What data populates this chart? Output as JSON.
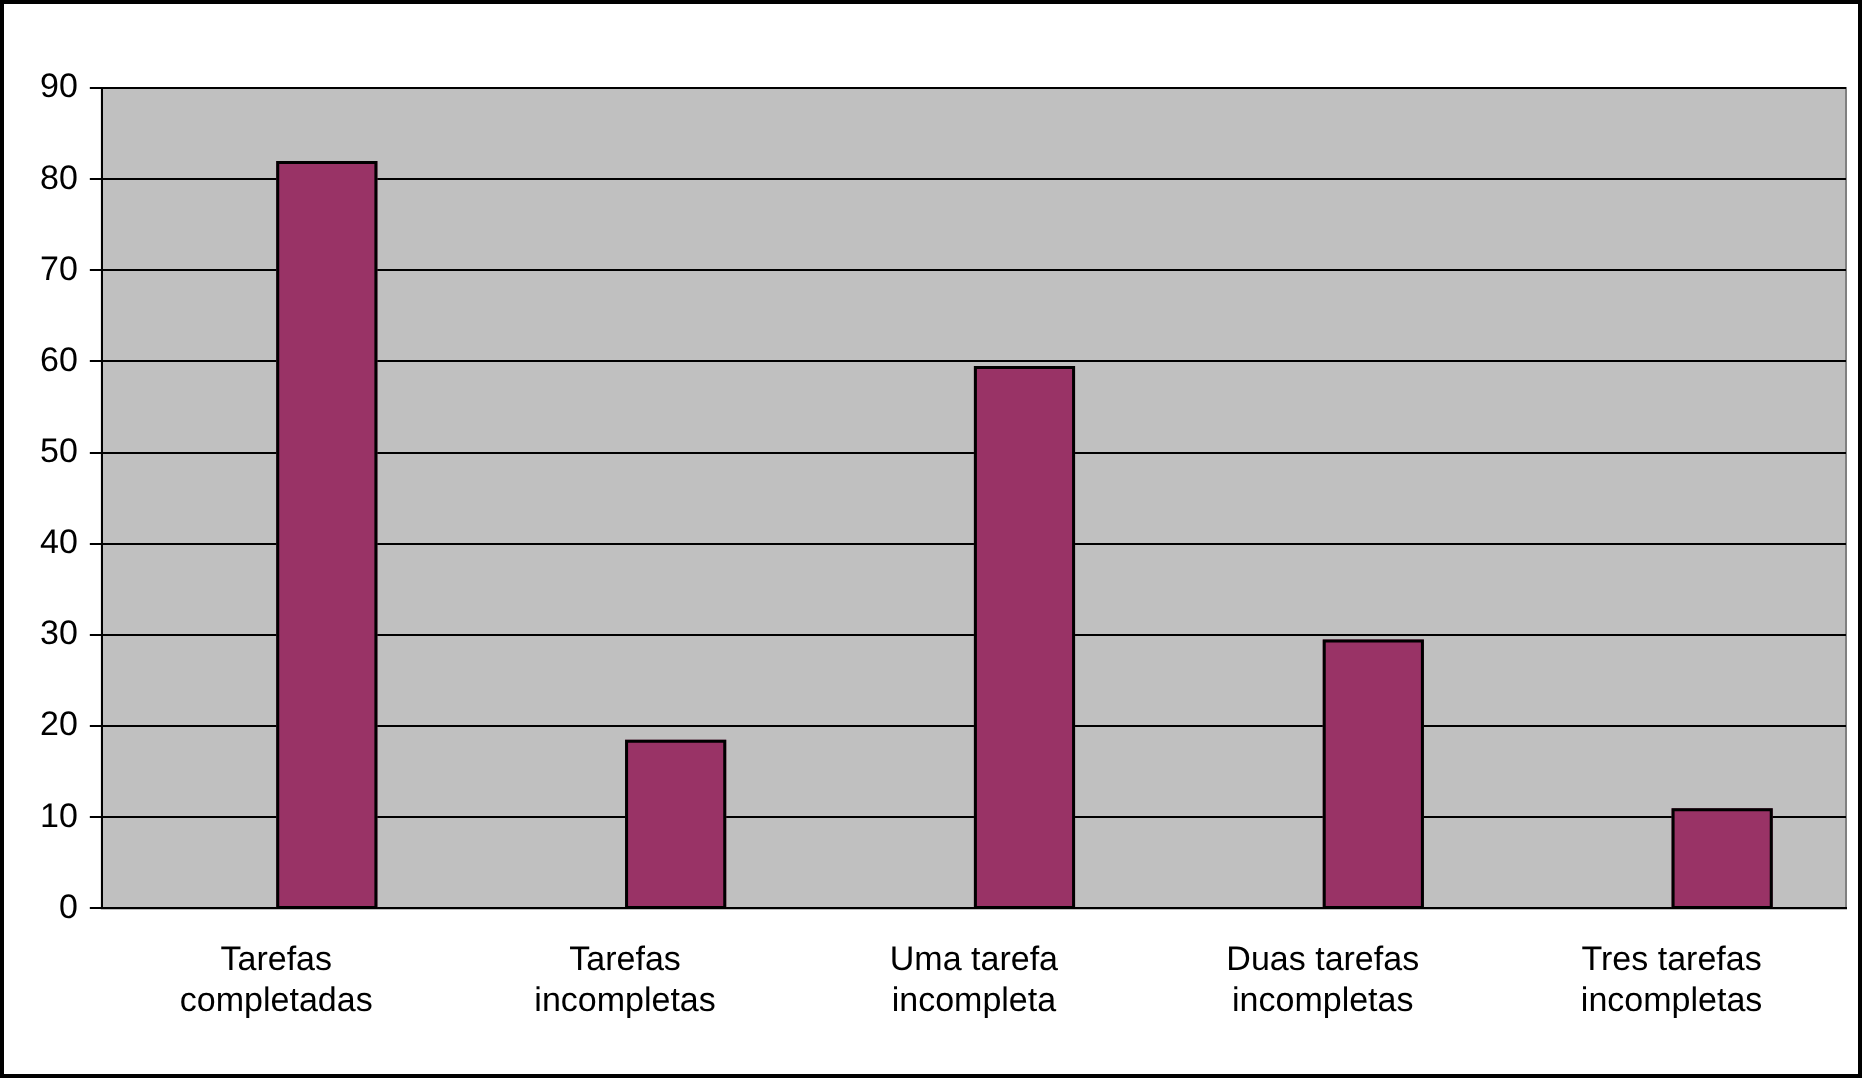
{
  "chart_data": {
    "type": "bar",
    "categories": [
      "Tarefas completadas",
      "Tarefas incompletas",
      "Uma tarefa incompleta",
      "Duas tarefas incompletas",
      "Tres tarefas incompletas"
    ],
    "values": [
      82,
      18.5,
      59.5,
      29.5,
      11
    ],
    "color": "#993366",
    "ylim": [
      0,
      90
    ],
    "yticks": [
      0,
      10,
      20,
      30,
      40,
      50,
      60,
      70,
      80,
      90
    ],
    "grid": "y",
    "legend": false
  }
}
